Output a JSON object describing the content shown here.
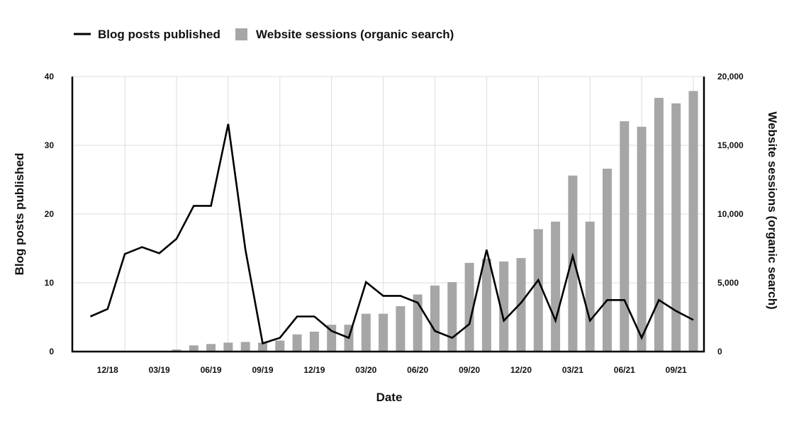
{
  "chart_data": {
    "type": "bar+line",
    "xlabel": "Date",
    "ylabel_left": "Blog posts published",
    "ylabel_right": "Website sessions (organic search)",
    "ylim_left": [
      0,
      40
    ],
    "ylim_right": [
      0,
      20000
    ],
    "yticks_left": [
      "0",
      "10",
      "20",
      "30",
      "40"
    ],
    "yticks_right": [
      "0",
      "5,000",
      "10,000",
      "15,000",
      "20,000"
    ],
    "xticks": [
      "12/18",
      "03/19",
      "06/19",
      "09/19",
      "12/19",
      "03/20",
      "06/20",
      "09/20",
      "12/20",
      "03/21",
      "06/21",
      "09/21"
    ],
    "grid": true,
    "legend_position": "top-left",
    "periods": 36,
    "series": [
      {
        "name": "Blog posts published",
        "type": "line",
        "axis": "left",
        "color": "#000000",
        "values": [
          5.1,
          6.2,
          14.2,
          15.2,
          14.3,
          16.4,
          21.2,
          21.2,
          33.1,
          14.8,
          1.2,
          2.0,
          5.1,
          5.1,
          3.0,
          2.0,
          10.1,
          8.1,
          8.1,
          7.1,
          3.0,
          2.0,
          4.0,
          14.8,
          4.5,
          7.1,
          10.4,
          4.5,
          13.9,
          4.5,
          7.5,
          7.5,
          2.0,
          7.5,
          5.9,
          4.6
        ]
      },
      {
        "name": "Website sessions (organic search)",
        "type": "bar",
        "axis": "right",
        "color": "#a6a6a6",
        "values": [
          0,
          0,
          0,
          0,
          0,
          150,
          450,
          550,
          650,
          700,
          650,
          800,
          1250,
          1450,
          1950,
          1950,
          2750,
          2750,
          3300,
          4150,
          4800,
          5050,
          6450,
          6750,
          6550,
          6800,
          8900,
          9450,
          12800,
          9450,
          13300,
          16750,
          16350,
          18450,
          18050,
          18950
        ]
      }
    ]
  }
}
